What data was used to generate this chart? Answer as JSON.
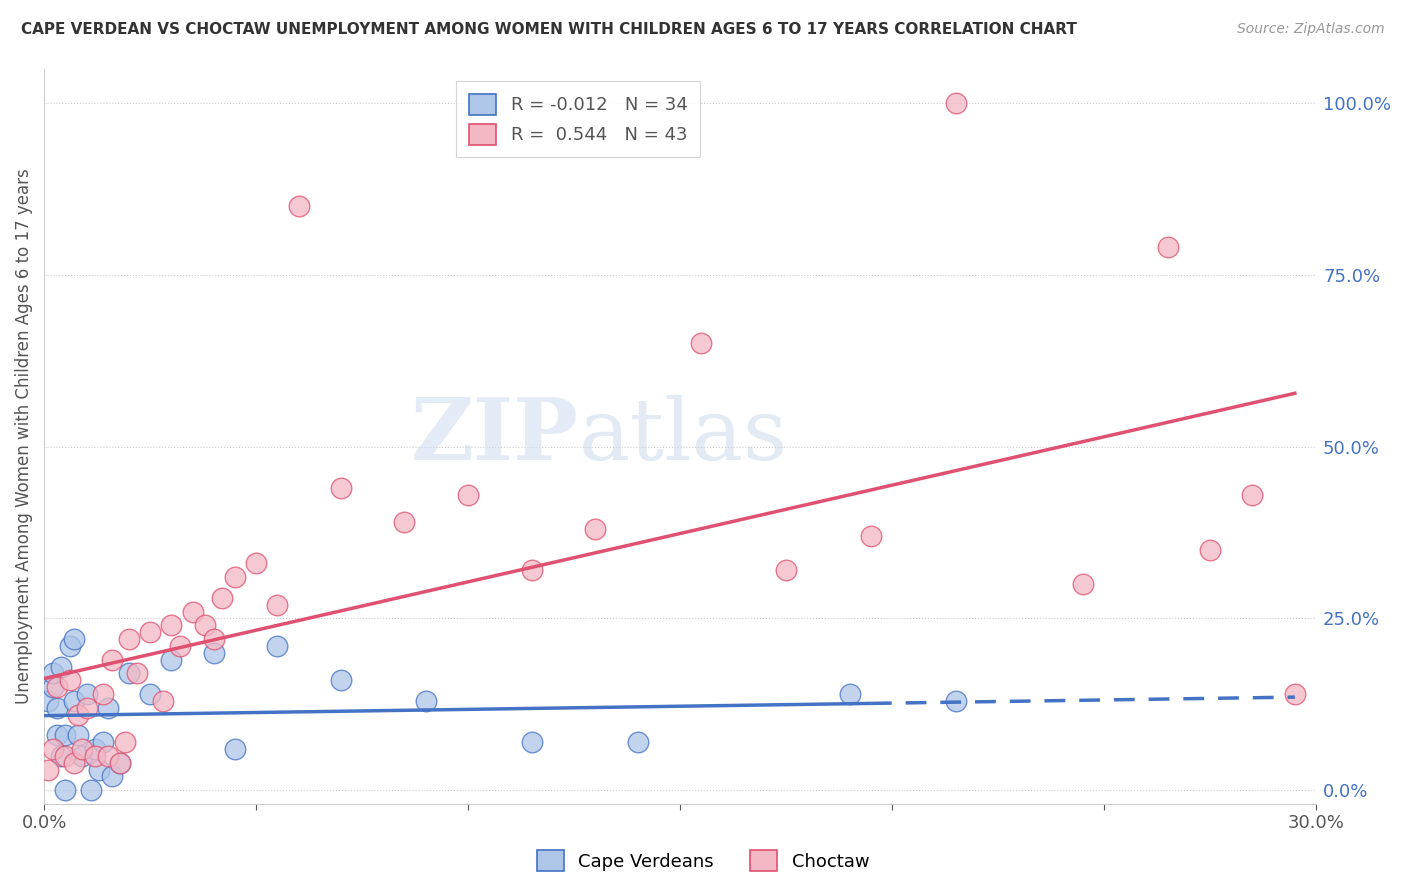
{
  "title": "CAPE VERDEAN VS CHOCTAW UNEMPLOYMENT AMONG WOMEN WITH CHILDREN AGES 6 TO 17 YEARS CORRELATION CHART",
  "source": "Source: ZipAtlas.com",
  "ylabel_left": "Unemployment Among Women with Children Ages 6 to 17 years",
  "xlim": [
    0.0,
    0.3
  ],
  "ylim": [
    -0.02,
    1.05
  ],
  "xticks": [
    0.0,
    0.05,
    0.1,
    0.15,
    0.2,
    0.25,
    0.3
  ],
  "xtick_labels": [
    "0.0%",
    "",
    "",
    "",
    "",
    "",
    "30.0%"
  ],
  "yticks_right": [
    0.0,
    0.25,
    0.5,
    0.75,
    1.0
  ],
  "ytick_labels_right": [
    "0.0%",
    "25.0%",
    "50.0%",
    "75.0%",
    "100.0%"
  ],
  "legend_cv_r": "-0.012",
  "legend_cv_n": "34",
  "legend_ch_r": "0.544",
  "legend_ch_n": "43",
  "cv_color": "#aec6e8",
  "ch_color": "#f4b8c4",
  "cv_edge_color": "#4472c4",
  "ch_edge_color": "#e05070",
  "cv_line_color": "#4472c4",
  "ch_line_color": "#e05070",
  "watermark_zip": "ZIP",
  "watermark_atlas": "atlas",
  "background_color": "#ffffff",
  "grid_color": "#cccccc",
  "cv_line_solid_end": 0.195,
  "cv_x": [
    0.001,
    0.002,
    0.002,
    0.003,
    0.003,
    0.004,
    0.004,
    0.005,
    0.005,
    0.006,
    0.007,
    0.007,
    0.008,
    0.009,
    0.01,
    0.011,
    0.012,
    0.013,
    0.014,
    0.015,
    0.016,
    0.018,
    0.02,
    0.025,
    0.03,
    0.04,
    0.045,
    0.055,
    0.07,
    0.09,
    0.115,
    0.14,
    0.19,
    0.215
  ],
  "cv_y": [
    0.13,
    0.15,
    0.17,
    0.08,
    0.12,
    0.05,
    0.18,
    0.0,
    0.08,
    0.21,
    0.22,
    0.13,
    0.08,
    0.05,
    0.14,
    0.0,
    0.06,
    0.03,
    0.07,
    0.12,
    0.02,
    0.04,
    0.17,
    0.14,
    0.19,
    0.2,
    0.06,
    0.21,
    0.16,
    0.13,
    0.07,
    0.07,
    0.14,
    0.13
  ],
  "ch_x": [
    0.001,
    0.002,
    0.003,
    0.005,
    0.006,
    0.007,
    0.008,
    0.009,
    0.01,
    0.012,
    0.014,
    0.015,
    0.016,
    0.018,
    0.019,
    0.02,
    0.022,
    0.025,
    0.028,
    0.03,
    0.032,
    0.035,
    0.038,
    0.04,
    0.042,
    0.045,
    0.05,
    0.055,
    0.06,
    0.07,
    0.085,
    0.1,
    0.115,
    0.13,
    0.155,
    0.175,
    0.195,
    0.215,
    0.245,
    0.265,
    0.275,
    0.285,
    0.295
  ],
  "ch_y": [
    0.03,
    0.06,
    0.15,
    0.05,
    0.16,
    0.04,
    0.11,
    0.06,
    0.12,
    0.05,
    0.14,
    0.05,
    0.19,
    0.04,
    0.07,
    0.22,
    0.17,
    0.23,
    0.13,
    0.24,
    0.21,
    0.26,
    0.24,
    0.22,
    0.28,
    0.31,
    0.33,
    0.27,
    0.85,
    0.44,
    0.39,
    0.43,
    0.32,
    0.38,
    0.65,
    0.32,
    0.37,
    1.0,
    0.3,
    0.79,
    0.35,
    0.43,
    0.14
  ]
}
